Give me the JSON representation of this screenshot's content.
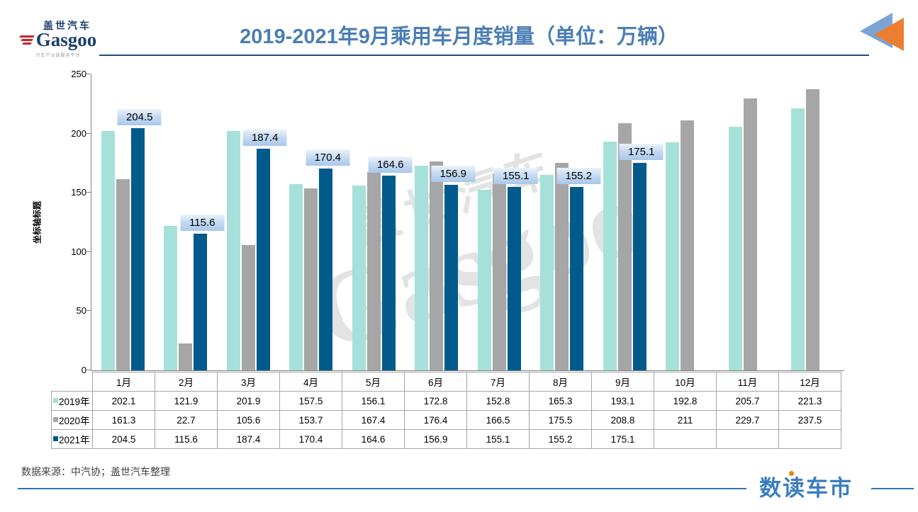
{
  "header": {
    "logo_cn": "盖世汽车",
    "logo_en": "Gasgoo",
    "logo_tagline": "汽车产业链服务平台",
    "title": "2019-2021年9月乘用车月度销量（单位：万辆）"
  },
  "chart_data": {
    "type": "bar",
    "title": "2019-2021年9月乘用车月度销量（单位：万辆）",
    "categories": [
      "1月",
      "2月",
      "3月",
      "4月",
      "5月",
      "6月",
      "7月",
      "8月",
      "9月",
      "10月",
      "11月",
      "12月"
    ],
    "series": [
      {
        "name": "2019年",
        "color": "#a5e1d9",
        "values": [
          202.1,
          121.9,
          201.9,
          157.5,
          156.1,
          172.8,
          152.8,
          165.3,
          193.1,
          192.8,
          205.7,
          221.3
        ]
      },
      {
        "name": "2020年",
        "color": "#a6a6a6",
        "values": [
          161.3,
          22.7,
          105.6,
          153.7,
          167.4,
          176.4,
          166.5,
          175.5,
          208.8,
          211,
          229.7,
          237.5
        ]
      },
      {
        "name": "2021年",
        "color": "#005a8b",
        "data_labels": true,
        "values": [
          204.5,
          115.6,
          187.4,
          170.4,
          164.6,
          156.9,
          155.1,
          155.2,
          175.1,
          null,
          null,
          null
        ]
      }
    ],
    "ylabel": "坐标轴标题",
    "ylim": [
      0,
      250
    ],
    "yticks": [
      0,
      50,
      100,
      150,
      200,
      250
    ],
    "grid": false,
    "legend_position": "table-left",
    "data_table": true,
    "watermark_cn": "盖世汽车",
    "watermark_en": "Gasgoo"
  },
  "footer": {
    "source": "数据来源：中汽协；盖世汽车整理",
    "brand": "数读车市"
  },
  "colors": {
    "title_blue": "#4a7eb5",
    "header_line": "#1f4e79",
    "footer_line": "#2e75b6",
    "series_2019": "#a5e1d9",
    "series_2020": "#a6a6a6",
    "series_2021": "#005a8b",
    "label_box_gradient_top": "#ecf3fc",
    "label_box_gradient_bottom": "#a9c8eb",
    "brand_blue": "#3a7dbf",
    "brand_dot_orange": "#f08219",
    "logo_navy": "#1a3e6e",
    "logo_red": "#cc2229",
    "arrow_blue": "#7ba3d6",
    "arrow_orange": "#ed7d31"
  }
}
